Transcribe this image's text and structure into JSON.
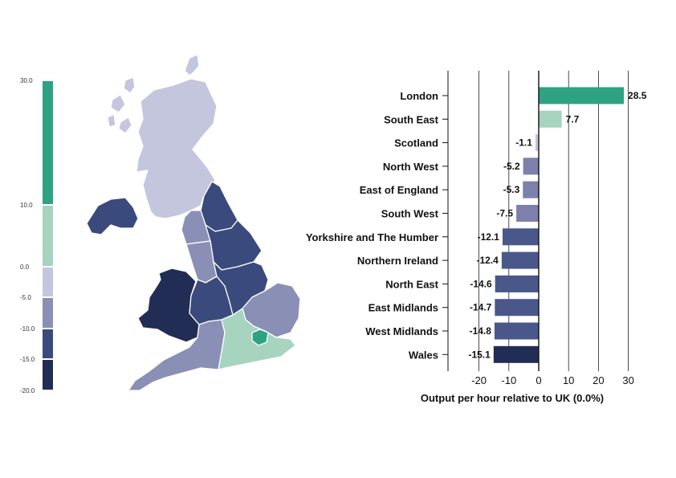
{
  "colors": {
    "london": "#2ea384",
    "south_east": "#a6d4bf",
    "scotland": "#c4c6de",
    "mid_low": "#8a8fb6",
    "dark": "#3a4a7d",
    "darkest": "#222d55"
  },
  "legend": {
    "ticks": [
      "30.0",
      "10.0",
      "0.0",
      "-5.0",
      "-10.0",
      "-15.0",
      "-20.0"
    ],
    "bands": [
      {
        "from": 10,
        "to": 30,
        "color": "#2ea384"
      },
      {
        "from": 0,
        "to": 10,
        "color": "#a6d4bf"
      },
      {
        "from": -5,
        "to": 0,
        "color": "#c4c6de"
      },
      {
        "from": -10,
        "to": -5,
        "color": "#8a8fb6"
      },
      {
        "from": -15,
        "to": -10,
        "color": "#3a4a7d"
      },
      {
        "from": -20,
        "to": -15,
        "color": "#222d55"
      }
    ]
  },
  "map": {
    "regions": [
      {
        "name": "scotland",
        "color": "#c4c6de"
      },
      {
        "name": "northern-ireland",
        "color": "#3a4a7d"
      },
      {
        "name": "north-east",
        "color": "#3a4a7d"
      },
      {
        "name": "north-west",
        "color": "#8a8fb6"
      },
      {
        "name": "yorkshire",
        "color": "#3a4a7d"
      },
      {
        "name": "wales",
        "color": "#222d55"
      },
      {
        "name": "west-midlands",
        "color": "#3a4a7d"
      },
      {
        "name": "east-midlands",
        "color": "#3a4a7d"
      },
      {
        "name": "east-of-england",
        "color": "#8a8fb6"
      },
      {
        "name": "south-west",
        "color": "#8a8fb6"
      },
      {
        "name": "south-east",
        "color": "#a6d4bf"
      },
      {
        "name": "london",
        "color": "#2ea384"
      }
    ]
  },
  "chart_data": {
    "type": "bar",
    "orientation": "horizontal",
    "categories": [
      "London",
      "South East",
      "Scotland",
      "North West",
      "East of England",
      "South West",
      "Yorkshire and The Humber",
      "Northern Ireland",
      "North East",
      "East Midlands",
      "West Midlands",
      "Wales"
    ],
    "values": [
      28.5,
      7.7,
      -1.1,
      -5.2,
      -5.3,
      -7.5,
      -12.1,
      -12.4,
      -14.6,
      -14.7,
      -14.8,
      -15.1
    ],
    "value_labels": [
      "28.5",
      "7.7",
      "-1.1",
      "-5.2",
      "-5.3",
      "-7.5",
      "-12.1",
      "-12.4",
      "-14.6",
      "-14.7",
      "-14.8",
      "-15.1"
    ],
    "colors": [
      "#2ea384",
      "#a6d4bf",
      "#c4c6de",
      "#7c80ab",
      "#7c80ab",
      "#7c80ab",
      "#4a578a",
      "#4a578a",
      "#4a578a",
      "#4a578a",
      "#4a578a",
      "#222d55"
    ],
    "xlim": [
      -30,
      30
    ],
    "xticks": [
      -20,
      -10,
      0,
      10,
      20,
      30
    ],
    "xtick_labels": [
      "-20",
      "-10",
      "0",
      "10",
      "20",
      "30"
    ],
    "xlabel": "Output per hour relative to UK (0.0%)",
    "ylabel": "",
    "title": "",
    "grid": true
  }
}
